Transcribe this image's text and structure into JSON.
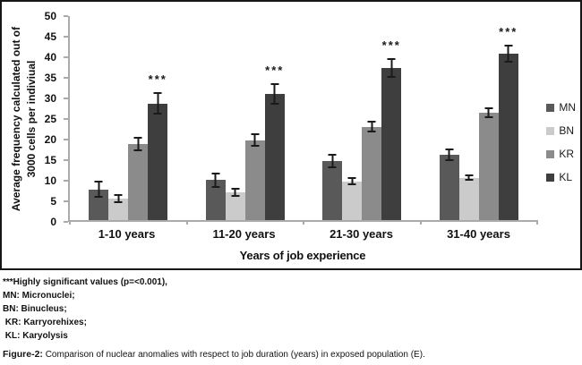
{
  "chart_data": {
    "type": "bar",
    "categories": [
      "1-10 years",
      "11-20 years",
      "21-30 years",
      "31-40 years"
    ],
    "series": [
      {
        "name": "MN",
        "color": "#595959",
        "values": [
          7.5,
          9.8,
          14.5,
          16.0
        ],
        "errors": [
          2.1,
          1.9,
          1.7,
          1.5
        ],
        "significant": [
          false,
          false,
          false,
          false
        ]
      },
      {
        "name": "BN",
        "color": "#cbcbcb",
        "values": [
          5.2,
          6.8,
          9.5,
          10.4
        ],
        "errors": [
          1.1,
          1.0,
          1.0,
          0.8
        ],
        "significant": [
          false,
          false,
          false,
          false
        ]
      },
      {
        "name": "KR",
        "color": "#8b8b8b",
        "values": [
          18.7,
          19.6,
          22.9,
          26.4
        ],
        "errors": [
          1.8,
          1.6,
          1.4,
          1.3
        ],
        "significant": [
          false,
          false,
          false,
          false
        ]
      },
      {
        "name": "KL",
        "color": "#3e3e3e",
        "values": [
          28.6,
          31.0,
          37.2,
          40.8
        ],
        "errors": [
          2.8,
          2.6,
          2.4,
          2.1
        ],
        "significant": [
          true,
          true,
          true,
          true
        ]
      }
    ],
    "significance_marker": "***",
    "xlabel": "Years of job experience",
    "ylabel_line1": "Average frequency calculated out of",
    "ylabel_line2": "3000 cells per indiviual",
    "ylim": [
      0,
      50
    ],
    "ytick_step": 5,
    "grid": false,
    "legend_position": "right"
  },
  "footer": {
    "lines": [
      "***Highly significant values (p=<0.001),",
      "MN: Micronuclei;",
      "BN: Binucleus;",
      " KR: Karryorehixes;",
      " KL: Karyolysis"
    ],
    "caption_label": "Figure-2:",
    "caption_text": " Comparison of nuclear anomalies with respect to job duration (years) in exposed population (E)."
  }
}
